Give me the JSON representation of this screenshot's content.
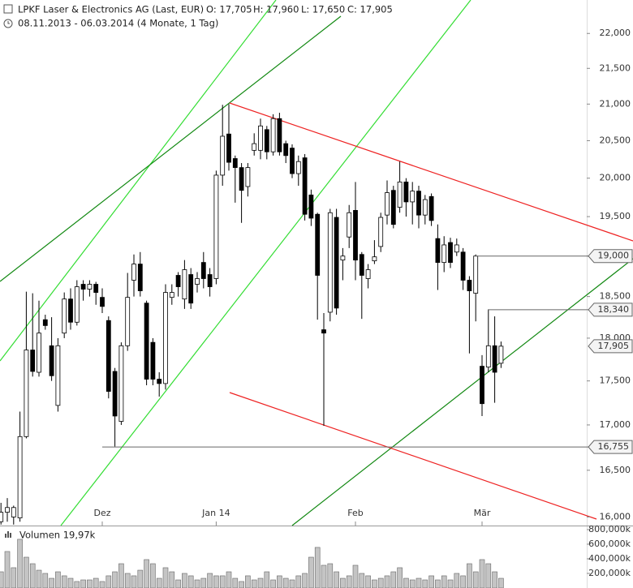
{
  "header": {
    "title": "LPKF Laser & Electronics AG (Last, EUR)",
    "quote": [
      "O: 17,705",
      "H: 17,960",
      "L: 17,650",
      "C: 17,905"
    ],
    "period": "08.11.2013 - 06.03.2014 (4 Monate, 1 Tag)"
  },
  "chart_data": [
    {
      "type": "candlestick",
      "log": true,
      "categories": [
        null,
        null,
        null,
        null,
        null,
        null,
        null,
        null,
        null,
        null,
        null,
        null,
        null,
        null,
        null,
        null,
        "Dez",
        null,
        null,
        null,
        null,
        null,
        null,
        null,
        null,
        null,
        null,
        null,
        null,
        null,
        null,
        null,
        null,
        null,
        "Jan 14",
        null,
        null,
        null,
        null,
        null,
        null,
        null,
        null,
        null,
        null,
        null,
        null,
        null,
        null,
        null,
        null,
        null,
        null,
        null,
        null,
        null,
        "Feb",
        null,
        null,
        null,
        null,
        null,
        null,
        null,
        null,
        null,
        null,
        null,
        null,
        null,
        null,
        null,
        null,
        null,
        null,
        null,
        "Mär",
        null,
        null,
        null
      ],
      "open": [
        15950,
        16050,
        16000,
        15990,
        16870,
        17860,
        17600,
        18220,
        17910,
        17220,
        18060,
        18470,
        18190,
        18650,
        18590,
        18650,
        18490,
        18210,
        17610,
        17040,
        17910,
        18700,
        18900,
        18420,
        17950,
        17520,
        17470,
        18490,
        18760,
        18470,
        18770,
        18650,
        18920,
        18770,
        18720,
        20040,
        20590,
        20260,
        20140,
        19890,
        20370,
        20370,
        20650,
        20350,
        20800,
        20460,
        20400,
        20060,
        20270,
        19780,
        19530,
        18100,
        18310,
        19490,
        18950,
        19240,
        19580,
        19020,
        18720,
        18940,
        19120,
        19520,
        19840,
        19620,
        19950,
        19690,
        19830,
        19520,
        19760,
        19220,
        18920,
        19170,
        19050,
        19050,
        18700,
        18540,
        17670,
        17660,
        17910,
        17705
      ],
      "high": [
        16150,
        16200,
        16120,
        17150,
        18560,
        18540,
        18450,
        18280,
        18250,
        18000,
        18550,
        18600,
        18700,
        18700,
        18700,
        18680,
        18600,
        18260,
        17650,
        17950,
        18790,
        19020,
        19050,
        18450,
        18000,
        17600,
        18650,
        18650,
        18800,
        18950,
        18850,
        18800,
        19050,
        18850,
        20100,
        20990,
        21000,
        20300,
        20200,
        20200,
        20600,
        20800,
        20700,
        20860,
        20880,
        20500,
        20450,
        20300,
        20320,
        19850,
        19550,
        18300,
        19600,
        19600,
        19100,
        19650,
        19950,
        19050,
        18900,
        19200,
        19550,
        19970,
        19900,
        20220,
        20000,
        19950,
        19900,
        19780,
        19800,
        19400,
        19250,
        19230,
        19220,
        19100,
        18750,
        19020,
        17800,
        18340,
        18260,
        17960
      ],
      "low": [
        15920,
        15950,
        15920,
        15950,
        16850,
        17550,
        17550,
        18100,
        17500,
        17150,
        18000,
        18100,
        18150,
        18450,
        18500,
        18400,
        18300,
        17300,
        16760,
        17000,
        17850,
        18500,
        18500,
        17450,
        17450,
        17320,
        17400,
        18400,
        18500,
        18350,
        18350,
        18550,
        18600,
        18500,
        18650,
        19900,
        20100,
        19680,
        19420,
        19760,
        20300,
        20250,
        20250,
        20300,
        20300,
        20200,
        20000,
        19900,
        19450,
        19380,
        18220,
        16990,
        18200,
        18280,
        18700,
        19100,
        18700,
        18230,
        18600,
        18900,
        19050,
        19400,
        19350,
        19550,
        19500,
        19400,
        19350,
        19400,
        19380,
        18580,
        18800,
        18850,
        19000,
        18580,
        17820,
        18200,
        17100,
        17600,
        17250,
        17650
      ],
      "close": [
        16050,
        16100,
        16100,
        16870,
        17860,
        17610,
        18060,
        18150,
        17560,
        17910,
        18470,
        18190,
        18620,
        18590,
        18650,
        18550,
        18380,
        17380,
        17100,
        17910,
        18490,
        18900,
        18570,
        17520,
        17520,
        17470,
        18550,
        18550,
        18620,
        18830,
        18420,
        18720,
        18720,
        18620,
        20040,
        20560,
        20210,
        20140,
        19840,
        20140,
        20460,
        20700,
        20350,
        20800,
        20350,
        20300,
        20060,
        20220,
        19530,
        19480,
        18760,
        18060,
        19550,
        18360,
        19000,
        19550,
        18950,
        18760,
        18830,
        18990,
        19490,
        19810,
        19400,
        19950,
        19690,
        19830,
        19520,
        19720,
        19450,
        18920,
        19140,
        18920,
        19140,
        18700,
        18570,
        19000,
        17240,
        17910,
        17600,
        17905
      ],
      "up_color": "#ffffff",
      "down_color": "#000000",
      "ylim": [
        15910,
        22490
      ],
      "yticks": [
        {
          "value": 16000,
          "label": "16,000"
        },
        {
          "value": 16500,
          "label": "16,500"
        },
        {
          "value": 17000,
          "label": "17,000"
        },
        {
          "value": 17500,
          "label": "17,500"
        },
        {
          "value": 18000,
          "label": "18,000"
        },
        {
          "value": 18500,
          "label": "18,500"
        },
        {
          "value": 19000,
          "label": "19,000"
        },
        {
          "value": 19500,
          "label": "19,500"
        },
        {
          "value": 20000,
          "label": "20,000"
        },
        {
          "value": 20500,
          "label": "20,500"
        },
        {
          "value": 21000,
          "label": "21,000"
        },
        {
          "value": 21500,
          "label": "21,500"
        },
        {
          "value": 22000,
          "label": "22,000"
        }
      ],
      "markers": [
        {
          "value": 19000,
          "label": "19,000"
        },
        {
          "value": 18340,
          "label": "18,340"
        },
        {
          "value": 16755,
          "label": "16,755"
        },
        {
          "value": 17905,
          "label": "17,905"
        }
      ]
    },
    {
      "type": "bar",
      "title": "Volumen 19,97k",
      "color": "#c4c4c4",
      "values": [
        222000,
        500000,
        278000,
        667000,
        422000,
        333000,
        244000,
        200000,
        133000,
        222000,
        167000,
        133000,
        89000,
        111000,
        111000,
        133000,
        89000,
        167000,
        222000,
        333000,
        200000,
        167000,
        244000,
        389000,
        333000,
        133000,
        278000,
        222000,
        111000,
        200000,
        167000,
        111000,
        133000,
        200000,
        167000,
        167000,
        222000,
        133000,
        89000,
        167000,
        111000,
        133000,
        222000,
        111000,
        167000,
        133000,
        111000,
        167000,
        200000,
        422000,
        556000,
        311000,
        333000,
        222000,
        133000,
        167000,
        311000,
        200000,
        167000,
        111000,
        133000,
        167000,
        222000,
        278000,
        133000,
        111000,
        133000,
        111000,
        167000,
        111000,
        167000,
        111000,
        200000,
        167000,
        333000,
        222000,
        389000,
        333000,
        222000,
        133000
      ],
      "ylim": [
        0,
        833000
      ],
      "yticks": [
        {
          "value": 200000,
          "label": "200,000k"
        },
        {
          "value": 400000,
          "label": "400,000k"
        },
        {
          "value": 600000,
          "label": "600,000k"
        },
        {
          "value": 800000,
          "label": "800,000k"
        }
      ]
    }
  ]
}
